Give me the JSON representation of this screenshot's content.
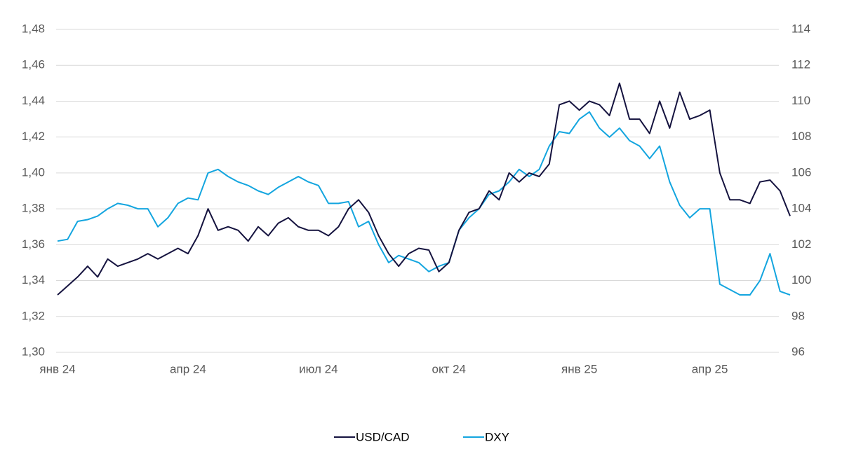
{
  "chart_data": {
    "type": "line",
    "categories": [
      "янв 24",
      null,
      null,
      null,
      null,
      null,
      null,
      null,
      null,
      null,
      null,
      null,
      null,
      "апр 24",
      null,
      null,
      null,
      null,
      null,
      null,
      null,
      null,
      null,
      null,
      null,
      null,
      "июл 24",
      null,
      null,
      null,
      null,
      null,
      null,
      null,
      null,
      null,
      null,
      null,
      null,
      "окт 24",
      null,
      null,
      null,
      null,
      null,
      null,
      null,
      null,
      null,
      null,
      null,
      null,
      "янв 25",
      null,
      null,
      null,
      null,
      null,
      null,
      null,
      null,
      null,
      null,
      null,
      null,
      "апр 25",
      null,
      null,
      null,
      null,
      null,
      null,
      null,
      null
    ],
    "series": [
      {
        "name": "USD/CAD",
        "color": "#15133f",
        "axis": "y",
        "values": [
          1.332,
          1.337,
          1.342,
          1.348,
          1.342,
          1.352,
          1.348,
          1.35,
          1.352,
          1.355,
          1.352,
          1.355,
          1.358,
          1.355,
          1.365,
          1.38,
          1.368,
          1.37,
          1.368,
          1.362,
          1.37,
          1.365,
          1.372,
          1.375,
          1.37,
          1.368,
          1.368,
          1.365,
          1.37,
          1.38,
          1.385,
          1.378,
          1.365,
          1.355,
          1.348,
          1.355,
          1.358,
          1.357,
          1.345,
          1.35,
          1.368,
          1.378,
          1.38,
          1.39,
          1.385,
          1.4,
          1.395,
          1.4,
          1.398,
          1.405,
          1.438,
          1.44,
          1.435,
          1.44,
          1.438,
          1.432,
          1.45,
          1.43,
          1.43,
          1.422,
          1.44,
          1.425,
          1.445,
          1.43,
          1.432,
          1.435,
          1.4,
          1.385,
          1.385,
          1.383,
          1.395,
          1.396,
          1.39,
          1.376
        ]
      },
      {
        "name": "DXY",
        "color": "#13a5df",
        "axis": "y2",
        "values": [
          102.2,
          102.3,
          103.3,
          103.4,
          103.6,
          104.0,
          104.3,
          104.2,
          104.0,
          104.0,
          103.0,
          103.5,
          104.3,
          104.6,
          104.5,
          106.0,
          106.2,
          105.8,
          105.5,
          105.3,
          105.0,
          104.8,
          105.2,
          105.5,
          105.8,
          105.5,
          105.3,
          104.3,
          104.3,
          104.4,
          103.0,
          103.3,
          102.0,
          101.0,
          101.4,
          101.2,
          101.0,
          100.5,
          100.8,
          101.0,
          102.8,
          103.5,
          104.0,
          104.8,
          105.0,
          105.5,
          106.2,
          105.8,
          106.2,
          107.5,
          108.3,
          108.2,
          109.0,
          109.4,
          108.5,
          108.0,
          108.5,
          107.8,
          107.5,
          106.8,
          107.5,
          105.5,
          104.2,
          103.5,
          104.0,
          104.0,
          99.8,
          99.5,
          99.2,
          99.2,
          100.0,
          101.5,
          99.4,
          99.2
        ]
      }
    ],
    "ylim": [
      1.3,
      1.48
    ],
    "yticks": [
      {
        "value": 1.3,
        "label": "1,30"
      },
      {
        "value": 1.32,
        "label": "1,32"
      },
      {
        "value": 1.34,
        "label": "1,34"
      },
      {
        "value": 1.36,
        "label": "1,36"
      },
      {
        "value": 1.38,
        "label": "1,38"
      },
      {
        "value": 1.4,
        "label": "1,40"
      },
      {
        "value": 1.42,
        "label": "1,42"
      },
      {
        "value": 1.44,
        "label": "1,44"
      },
      {
        "value": 1.46,
        "label": "1,46"
      },
      {
        "value": 1.48,
        "label": "1,48"
      }
    ],
    "y2lim": [
      96,
      114
    ],
    "y2ticks": [
      96,
      98,
      100,
      102,
      104,
      106,
      108,
      110,
      112,
      114
    ],
    "grid": true,
    "legend": "bottom"
  }
}
